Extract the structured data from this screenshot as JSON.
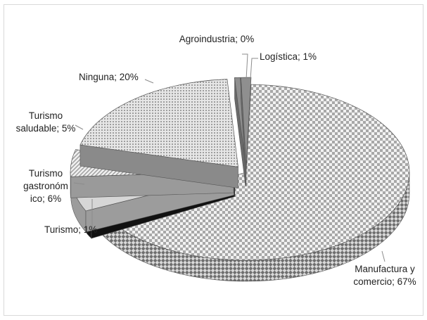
{
  "chart_data": {
    "type": "pie",
    "style": "3d-exploded",
    "slices": [
      {
        "label": "Manufactura y comercio; 67%",
        "category": "Manufactura y comercio",
        "value": 67,
        "pattern": "checker",
        "color": "#b0b0b0"
      },
      {
        "label": "Turismo; 1%",
        "category": "Turismo",
        "value": 1,
        "pattern": "solid-dark",
        "color": "#1a1a1a"
      },
      {
        "label": "Turismo gastronóm ico; 6%",
        "category": "Turismo gastronómico",
        "value": 6,
        "pattern": "solid-light",
        "color": "#d4d4d4"
      },
      {
        "label": "Turismo saludable; 5%",
        "category": "Turismo saludable",
        "value": 5,
        "pattern": "stripes",
        "color": "#c8c8c8"
      },
      {
        "label": "Ninguna; 20%",
        "category": "Ninguna",
        "value": 20,
        "pattern": "dots",
        "color": "#c0c0c0"
      },
      {
        "label": "Agroindustria; 0%",
        "category": "Agroindustria",
        "value": 0,
        "pattern": "solid-mid",
        "color": "#8c8c8c"
      },
      {
        "label": "Logística; 1%",
        "category": "Logística",
        "value": 1,
        "pattern": "solid-mid",
        "color": "#9a9a9a"
      }
    ]
  }
}
